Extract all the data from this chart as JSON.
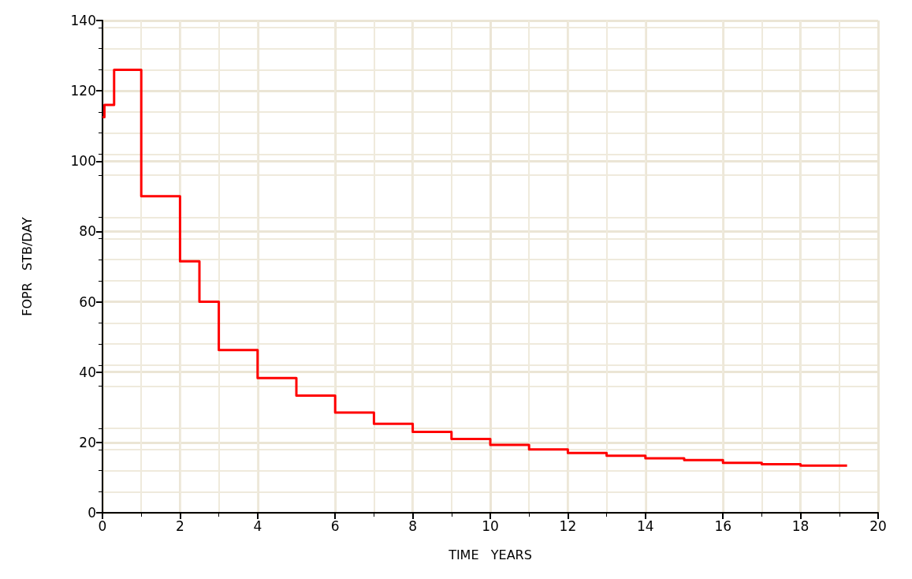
{
  "chart_data": {
    "type": "step",
    "xlabel": "TIME   YEARS",
    "ylabel": "FOPR   STB/DAY",
    "x": [
      0,
      0.05,
      0.3,
      1,
      2,
      2.5,
      3,
      4,
      5,
      6,
      7,
      8,
      9,
      10,
      11,
      12,
      13,
      14,
      15,
      16,
      17,
      18,
      19.2
    ],
    "series": [
      {
        "color": "#ff0000",
        "values": [
          112.5,
          116,
          126,
          90,
          71.5,
          60,
          46.3,
          38.3,
          33.3,
          28.5,
          25.3,
          23,
          21,
          19.3,
          18,
          17,
          16.2,
          15.5,
          15,
          14.2,
          13.8,
          13.4,
          13.4
        ]
      }
    ],
    "xlim": [
      0,
      20
    ],
    "xticks": [
      0,
      2,
      4,
      6,
      8,
      10,
      12,
      14,
      16,
      18,
      20
    ],
    "ylim": [
      0,
      140
    ],
    "yticks": [
      0,
      20,
      40,
      60,
      80,
      100,
      120,
      140
    ],
    "grid": true
  }
}
